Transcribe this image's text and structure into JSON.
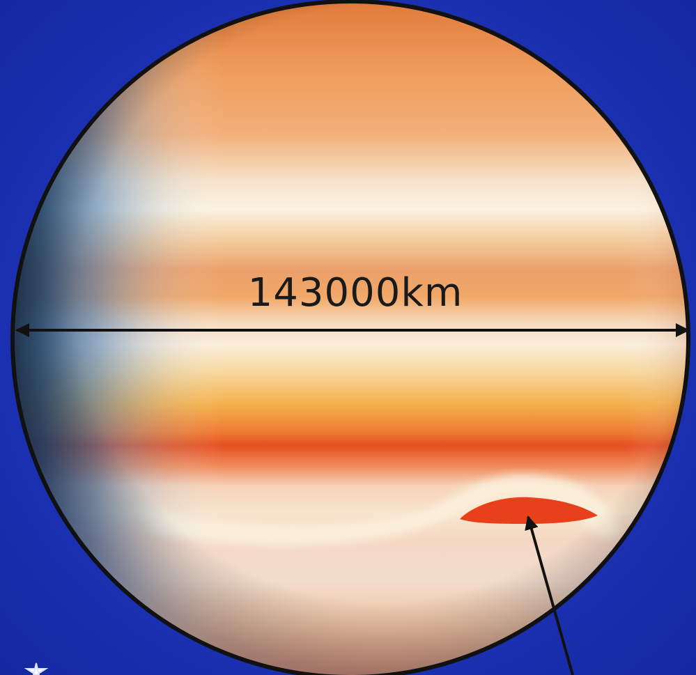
{
  "diagram": {
    "subject": "Jupiter",
    "diameter_label": "143000km",
    "colors": {
      "background": "#1c34b8",
      "planet_outline": "#111111",
      "great_red_spot": "#e8401a",
      "band_orange": "#e88a3a",
      "band_red": "#e0481e",
      "band_cream": "#f6ecd6",
      "limb_shadow": "#2a4fa0"
    },
    "icons": [
      "double-headed-arrow-icon",
      "pointer-arrow-icon",
      "star-icon"
    ]
  }
}
